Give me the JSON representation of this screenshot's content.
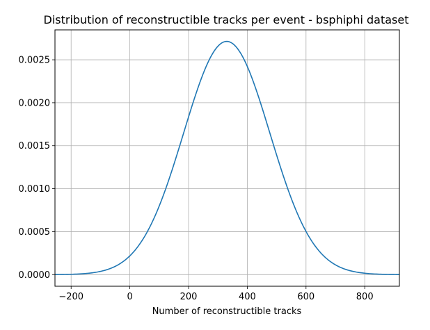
{
  "chart_data": {
    "type": "line",
    "title": "Distribution of reconstructible tracks per event - bsphiphi dataset",
    "xlabel": "Number of reconstructible tracks",
    "ylabel": "",
    "xlim": [
      -255,
      918
    ],
    "ylim": [
      -0.000135,
      0.002848
    ],
    "grid": true,
    "x_ticks": [
      -200,
      0,
      200,
      400,
      600,
      800
    ],
    "x_tick_labels": [
      "−200",
      "0",
      "200",
      "400",
      "600",
      "800"
    ],
    "y_ticks": [
      0,
      0.0005,
      0.001,
      0.0015,
      0.002,
      0.0025
    ],
    "y_tick_labels": [
      "0.0000",
      "0.0005",
      "0.0010",
      "0.0015",
      "0.0020",
      "0.0025"
    ],
    "series": [
      {
        "color": "#1f77b4",
        "curve": "gaussian",
        "mean": 330,
        "std": 147,
        "peak": 0.002714,
        "x_range": [
          -255,
          918
        ]
      }
    ]
  }
}
